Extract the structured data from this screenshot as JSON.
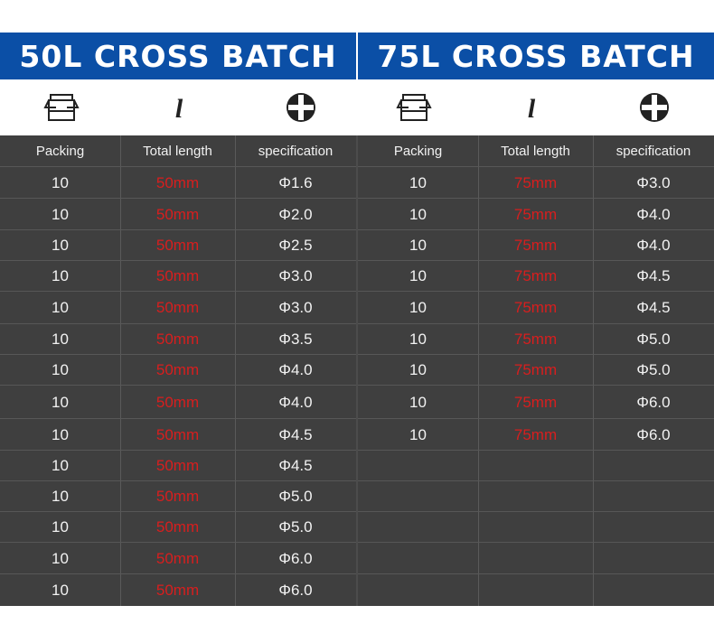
{
  "left": {
    "title": "50L CROSS BATCH",
    "headers": [
      "Packing",
      "Total length",
      "specification"
    ],
    "rows": [
      [
        "10",
        "50mm",
        "Φ1.6"
      ],
      [
        "10",
        "50mm",
        "Φ2.0"
      ],
      [
        "10",
        "50mm",
        "Φ2.5"
      ],
      [
        "10",
        "50mm",
        "Φ3.0"
      ],
      [
        "10",
        "50mm",
        "Φ3.0"
      ],
      [
        "10",
        "50mm",
        "Φ3.5"
      ],
      [
        "10",
        "50mm",
        "Φ4.0"
      ],
      [
        "10",
        "50mm",
        "Φ4.0"
      ],
      [
        "10",
        "50mm",
        "Φ4.5"
      ],
      [
        "10",
        "50mm",
        "Φ4.5"
      ],
      [
        "10",
        "50mm",
        "Φ5.0"
      ],
      [
        "10",
        "50mm",
        "Φ5.0"
      ],
      [
        "10",
        "50mm",
        "Φ6.0"
      ],
      [
        "10",
        "50mm",
        "Φ6.0"
      ]
    ]
  },
  "right": {
    "title": "75L CROSS BATCH",
    "headers": [
      "Packing",
      "Total length",
      "specification"
    ],
    "rows": [
      [
        "10",
        "75mm",
        "Φ3.0"
      ],
      [
        "10",
        "75mm",
        "Φ4.0"
      ],
      [
        "10",
        "75mm",
        "Φ4.0"
      ],
      [
        "10",
        "75mm",
        "Φ4.5"
      ],
      [
        "10",
        "75mm",
        "Φ4.5"
      ],
      [
        "10",
        "75mm",
        "Φ5.0"
      ],
      [
        "10",
        "75mm",
        "Φ5.0"
      ],
      [
        "10",
        "75mm",
        "Φ6.0"
      ],
      [
        "10",
        "75mm",
        "Φ6.0"
      ]
    ]
  },
  "icons": [
    "package-box-icon",
    "length-icon",
    "phillips-cross-icon"
  ],
  "length_symbol": "l",
  "colors": {
    "banner": "#0b4fa6",
    "table_bg": "#3f3f3f",
    "length_text": "#d81e1e",
    "text": "#f2f2f2"
  }
}
